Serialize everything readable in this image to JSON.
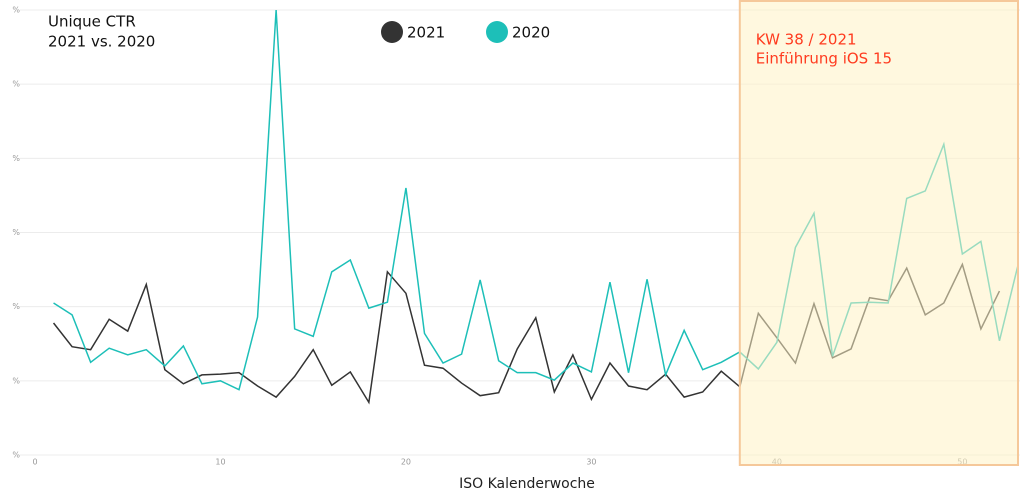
{
  "chart_data": {
    "type": "line",
    "title": "Unique CTR",
    "subtitle": "2021 vs. 2020",
    "x_label": "ISO Kalenderwoche",
    "annotation": [
      "KW 38 / 2021",
      "Einführung iOS 15"
    ],
    "annotation_color": "#ff3b1f",
    "highlight": [
      38,
      53
    ],
    "highlight_color": "#fff3c4",
    "x": [
      1,
      2,
      3,
      4,
      5,
      6,
      7,
      8,
      9,
      10,
      11,
      12,
      13,
      14,
      15,
      16,
      17,
      18,
      19,
      20,
      21,
      22,
      23,
      24,
      25,
      26,
      27,
      28,
      29,
      30,
      31,
      32,
      33,
      34,
      35,
      36,
      37,
      38,
      39,
      40,
      41,
      42,
      43,
      44,
      45,
      46,
      47,
      48,
      49,
      50,
      51,
      52,
      53
    ],
    "series": [
      {
        "name": "2021",
        "color": "#333333",
        "values": [
          1.78,
          1.46,
          1.42,
          1.83,
          1.67,
          2.3,
          1.15,
          0.96,
          1.08,
          1.09,
          1.11,
          0.93,
          0.78,
          1.06,
          1.42,
          0.94,
          1.12,
          0.71,
          2.47,
          2.18,
          1.21,
          1.17,
          0.97,
          0.8,
          0.84,
          1.43,
          1.85,
          0.85,
          1.35,
          0.75,
          1.24,
          0.93,
          0.88,
          1.09,
          0.78,
          0.85,
          1.13,
          0.92,
          1.91,
          1.58,
          1.24,
          2.04,
          1.31,
          1.43,
          2.12,
          2.08,
          2.52,
          1.89,
          2.05,
          2.57,
          1.7,
          2.21,
          null
        ]
      },
      {
        "name": "2020",
        "color": "#1dbfb8",
        "values": [
          2.05,
          1.89,
          1.25,
          1.44,
          1.35,
          1.42,
          1.2,
          1.47,
          0.96,
          1.0,
          0.88,
          1.86,
          6.0,
          1.7,
          1.6,
          2.47,
          2.63,
          1.98,
          2.06,
          3.6,
          1.64,
          1.24,
          1.36,
          2.36,
          1.27,
          1.11,
          1.11,
          1.01,
          1.24,
          1.12,
          2.33,
          1.11,
          2.37,
          1.08,
          1.68,
          1.15,
          1.25,
          1.39,
          1.16,
          1.52,
          2.8,
          3.26,
          1.33,
          2.05,
          2.06,
          2.05,
          3.46,
          3.56,
          4.19,
          2.71,
          2.88,
          1.54,
          2.56
        ]
      }
    ],
    "xlim": [
      0,
      53
    ],
    "ylim": [
      0,
      6
    ],
    "xticks": [
      0,
      10,
      20,
      30,
      40,
      50
    ],
    "yticks": [
      {
        "value": 0,
        "label": "%"
      },
      {
        "value": 1,
        "label": "%"
      },
      {
        "value": 2,
        "label": "%"
      },
      {
        "value": 3,
        "label": "%"
      },
      {
        "value": 4,
        "label": "%"
      },
      {
        "value": 5,
        "label": "%"
      },
      {
        "value": 6,
        "label": "%"
      }
    ],
    "grid": true
  }
}
